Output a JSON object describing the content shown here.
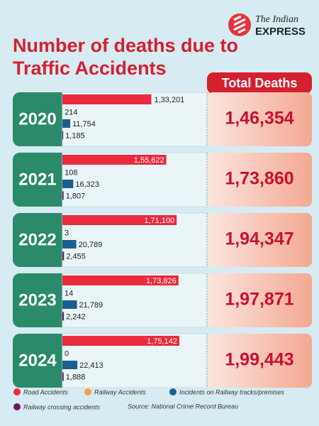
{
  "chart_data": {
    "type": "bar",
    "title_lines": [
      "Number of deaths due to",
      "Traffic Accidents"
    ],
    "publisher": [
      "The Indian",
      "EXPRESS"
    ],
    "categories": [
      "2020",
      "2021",
      "2022",
      "2023",
      "2024"
    ],
    "series": [
      {
        "name": "Road Accidents",
        "color": "#ea2a3d",
        "values": [
          133201,
          155622,
          171100,
          173826,
          175142
        ],
        "value_labels": [
          "1,33,201",
          "1,55,622",
          "1,71,100",
          "1,73,826",
          "1,75,142"
        ]
      },
      {
        "name": "Railway Accidents",
        "color": "#f4a340",
        "values": [
          214,
          108,
          3,
          14,
          0
        ]
      },
      {
        "name": "Incidents on Railway tracks/premises",
        "color": "#1c5f8e",
        "values": [
          11754,
          16323,
          20789,
          21789,
          22413
        ],
        "value_labels": [
          "11,754",
          "16,323",
          "20,789",
          "21,789",
          "22,413"
        ]
      },
      {
        "name": "Railway crossing accidents",
        "color": "#6e1766",
        "values": [
          1185,
          1807,
          2455,
          2242,
          1888
        ],
        "value_labels": [
          "1,185",
          "1,807",
          "2,455",
          "2,242",
          "1,888"
        ]
      }
    ],
    "totals_title": "Total Deaths",
    "totals": [
      146354,
      173860,
      194347,
      197871,
      199443
    ],
    "totals_labels": [
      "1,46,354",
      "1,73,860",
      "1,94,347",
      "1,97,871",
      "1,99,443"
    ],
    "source": "Source: National Crime Record Bureau"
  }
}
